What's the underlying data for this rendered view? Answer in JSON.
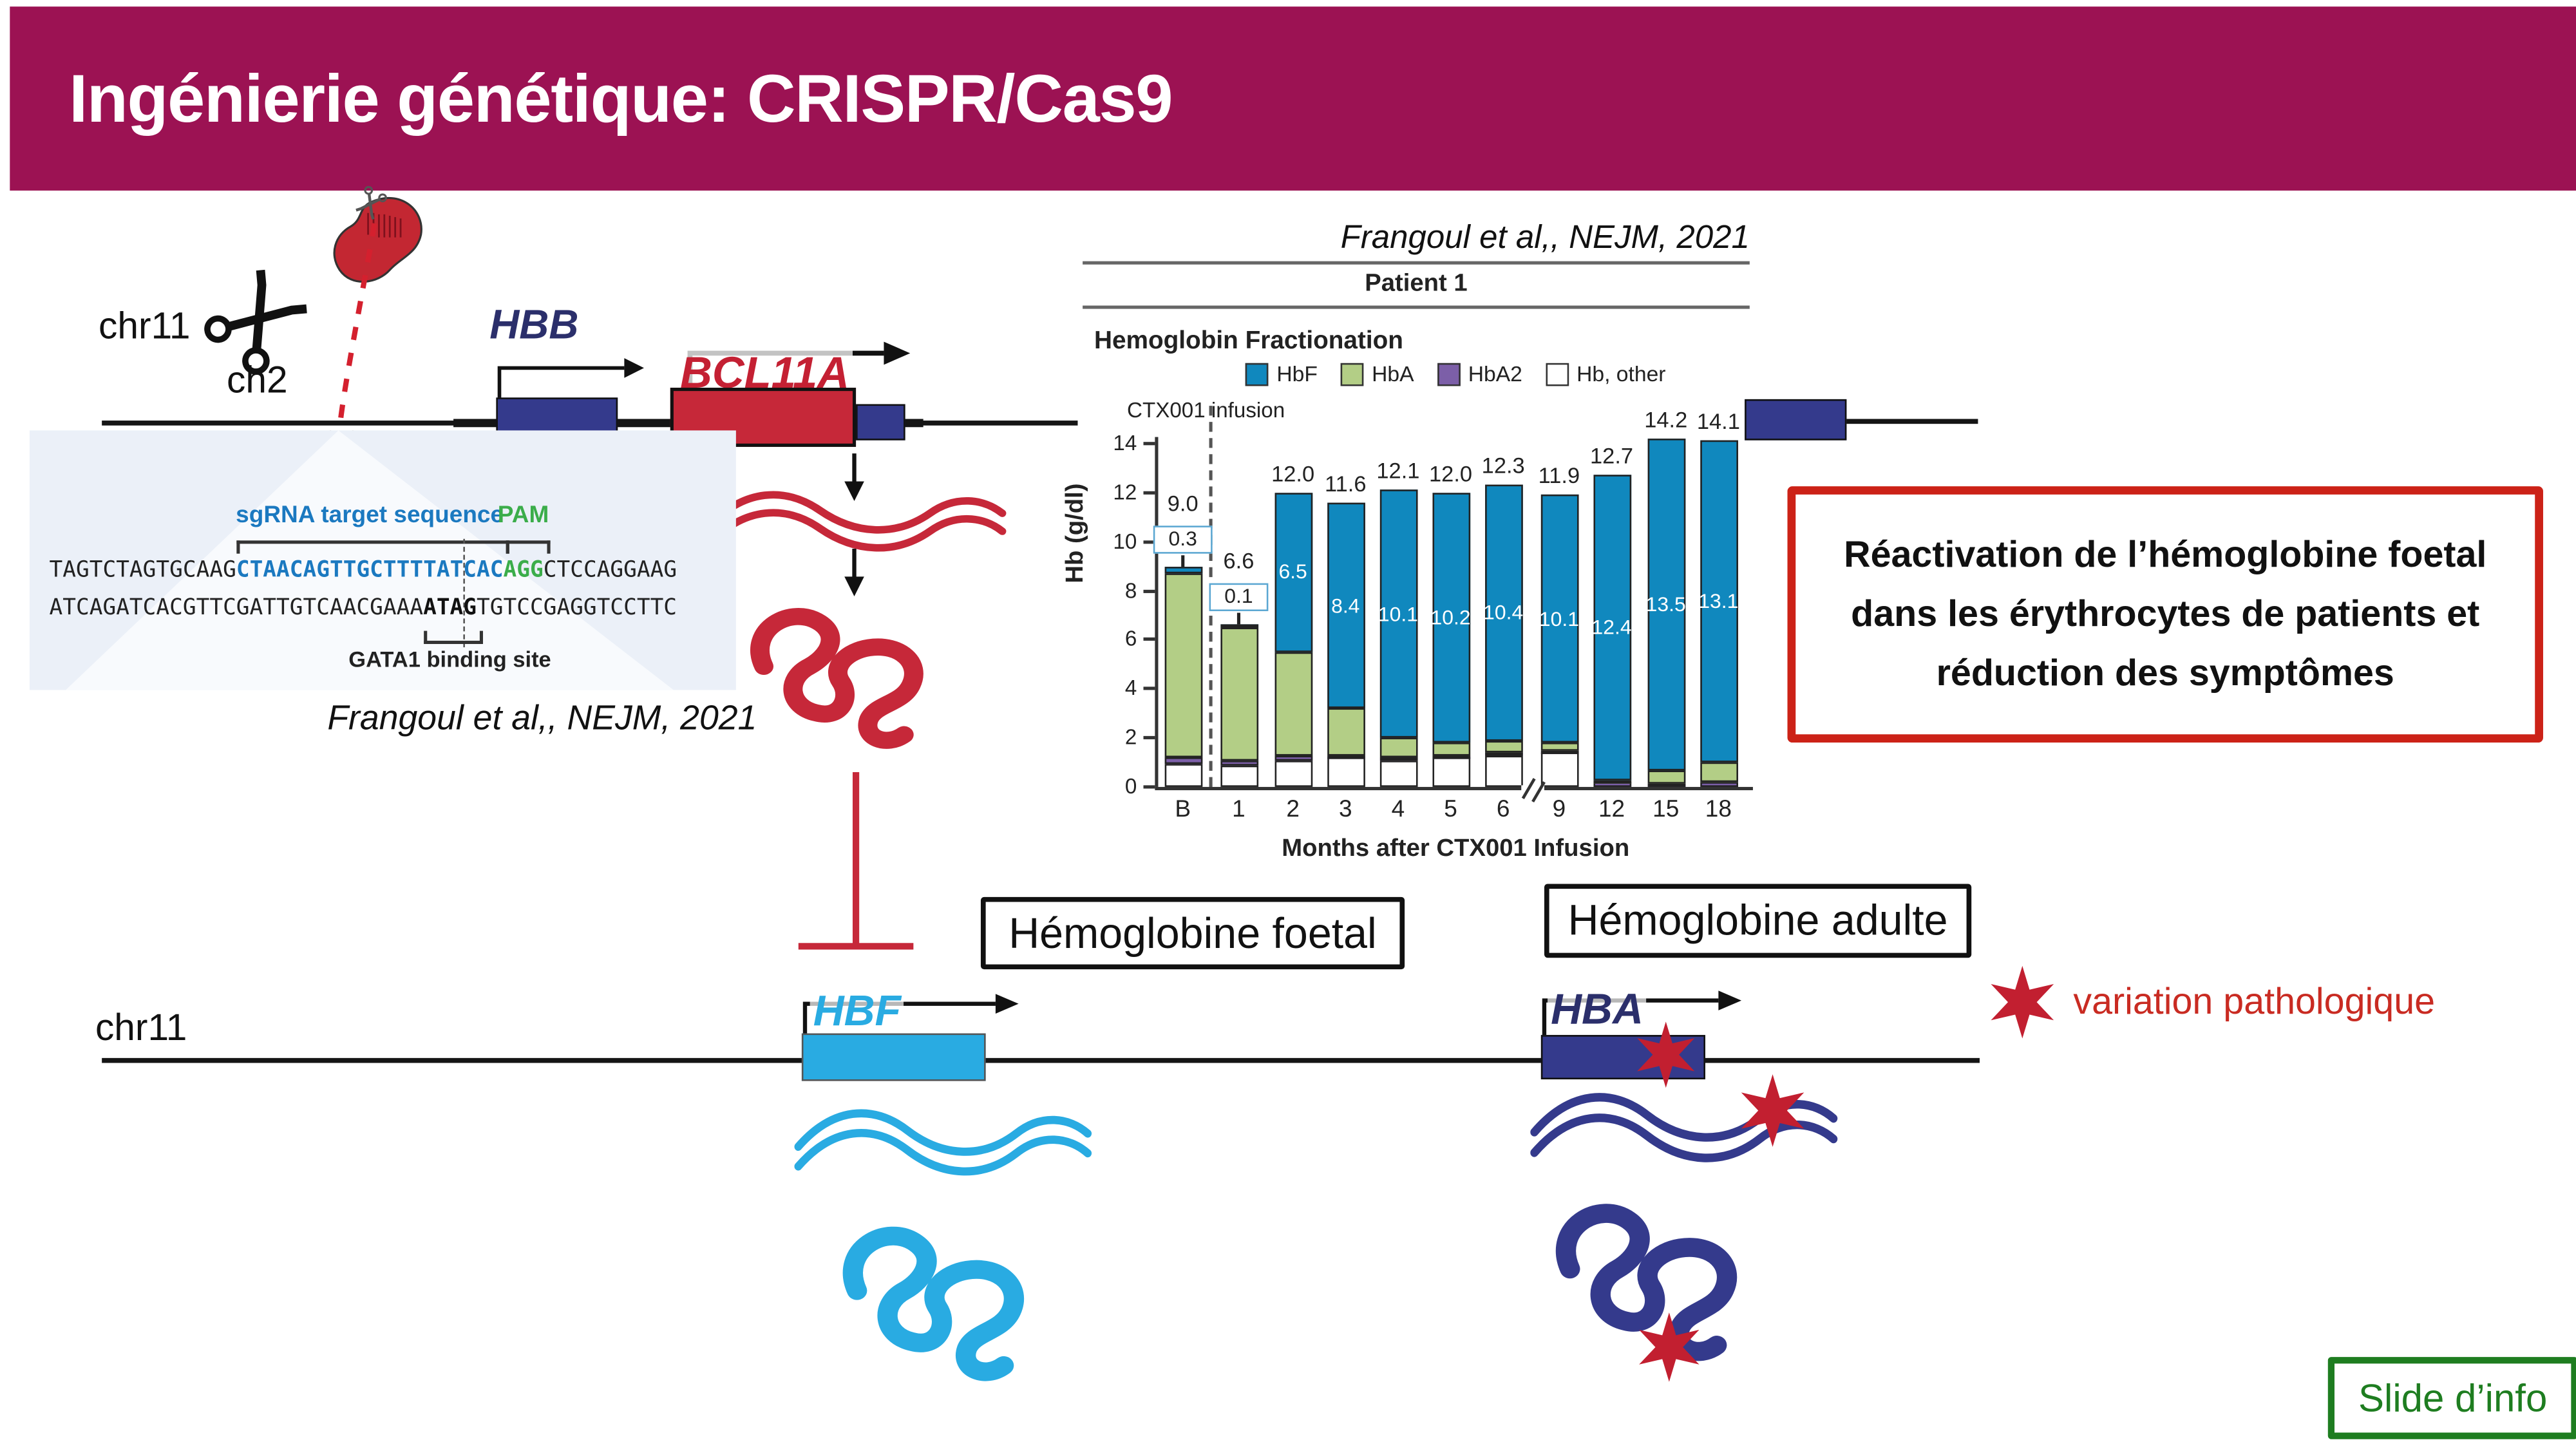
{
  "slide": {
    "title": "Ingénierie génétique: CRISPR/Cas9",
    "info_badge": "Slide d’info"
  },
  "colors": {
    "banner": "#9C1253",
    "navy": "#343A8C",
    "navy_text": "#2B2F6B",
    "red": "#C62839",
    "red_text": "#C42033",
    "light_blue": "#29ABE2",
    "seq_blue": "#1B79C0",
    "pam_green": "#3BAD4A",
    "callout_border": "#CC2217",
    "star_red": "#C21F30",
    "variation_red": "#C92B22",
    "info_green": "#1E7D20",
    "hbf": "#1088BE",
    "hba": "#B3CE86",
    "hba2": "#7C5FA8",
    "other": "#FFFFFF"
  },
  "top_diagram": {
    "chromosome_label": "chr11",
    "cas9_chromosome_label": "ch2",
    "hbb_gene": "HBB",
    "bcl11a_gene": "BCL11A",
    "citation": "Frangoul et al,, NEJM, 2021",
    "sequence_panel": {
      "sgrna_label": "sgRNA target sequence",
      "pam_label": "PAM",
      "line1_pre": "TAGTCTAGTGCAAG",
      "line1_target": "CTAACAGTTGCTTTTATCAC",
      "line1_pam": "AGG",
      "line1_post": "CTCCAGGAAG",
      "line2_pre": "ATCAGATCACGTTCGATTGTCAACGAAA",
      "line2_gata1": "ATAG",
      "line2_post": "TGTCCGAGGTCCTTC",
      "gata1_label": "GATA1 binding site"
    }
  },
  "chart": {
    "citation": "Frangoul et al,, NEJM, 2021",
    "patient_label": "Patient 1",
    "section_label": "Hemoglobin Fractionation",
    "infusion_label": "CTX001 infusion",
    "ylabel": "Hb (g/dl)",
    "xlabel": "Months after CTX001 Infusion",
    "legend": [
      {
        "label": "HbF",
        "key": "hbf"
      },
      {
        "label": "HbA",
        "key": "hba"
      },
      {
        "label": "HbA2",
        "key": "hba2"
      },
      {
        "label": "Hb, other",
        "key": "other"
      }
    ]
  },
  "chart_data": {
    "type": "bar",
    "stacked": true,
    "title": "Hemoglobin Fractionation — Patient 1",
    "xlabel": "Months after CTX001 Infusion",
    "ylabel": "Hb (g/dl)",
    "ylim": [
      0,
      14
    ],
    "ytick_step": 2,
    "axis_break_after_category": "6",
    "categories": [
      "B",
      "1",
      "2",
      "3",
      "4",
      "5",
      "6",
      "9",
      "12",
      "15",
      "18"
    ],
    "series": [
      {
        "key": "hbf",
        "name": "HbF",
        "values": [
          0.3,
          0.1,
          6.5,
          8.4,
          10.1,
          10.2,
          10.4,
          10.1,
          12.4,
          13.5,
          13.1
        ]
      },
      {
        "key": "hba",
        "name": "HbA",
        "values": [
          7.5,
          5.45,
          4.25,
          1.9,
          0.8,
          0.5,
          0.5,
          0.3,
          0.1,
          0.55,
          0.8
        ]
      },
      {
        "key": "hba2",
        "name": "HbA2",
        "values": [
          0.25,
          0.15,
          0.15,
          0.1,
          0.1,
          0.1,
          0.1,
          0.1,
          0.2,
          0.15,
          0.2
        ]
      },
      {
        "key": "other",
        "name": "Hb, other",
        "values": [
          0.95,
          0.9,
          1.1,
          1.2,
          1.1,
          1.2,
          1.3,
          1.4,
          0,
          0,
          0
        ]
      }
    ],
    "totals": [
      "9.0",
      "6.6",
      "12.0",
      "11.6",
      "12.1",
      "12.0",
      "12.3",
      "11.9",
      "12.7",
      "14.2",
      "14.1"
    ],
    "hbf_in_bar_labels": [
      null,
      null,
      "6.5",
      "8.4",
      "10.1",
      "10.2",
      "10.4",
      "10.1",
      "12.4",
      "13.5",
      "13.1"
    ],
    "boxed_hbf_labels": [
      "0.3",
      "0.1",
      null,
      null,
      null,
      null,
      null,
      null,
      null,
      null,
      null
    ]
  },
  "callout": {
    "text": "Réactivation de l’hémoglobine foetal dans les érythrocytes de patients et réduction des symptômes"
  },
  "labels": {
    "foetal": "Hémoglobine foetal",
    "adulte": "Hémoglobine adulte"
  },
  "bottom_diagram": {
    "chromosome_label": "chr11",
    "hbf_gene": "HBF",
    "hba_gene": "HBA",
    "star_legend": "variation pathologique"
  }
}
